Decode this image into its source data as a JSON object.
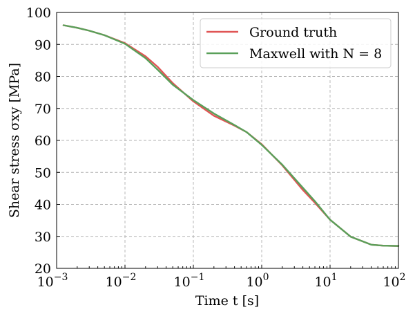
{
  "chart_data": {
    "type": "line",
    "xscale": "log",
    "xlim": [
      0.001,
      100
    ],
    "ylim": [
      20,
      100
    ],
    "grid": true,
    "legend_position": "top-right",
    "xlabel": "Time t [s]",
    "ylabel": "Shear stress σxy [MPa]",
    "x_tick_labels": [
      {
        "base": "10",
        "exp": "−3"
      },
      {
        "base": "10",
        "exp": "−2"
      },
      {
        "base": "10",
        "exp": "−1"
      },
      {
        "base": "10",
        "exp": "0"
      },
      {
        "base": "10",
        "exp": "1"
      },
      {
        "base": "10",
        "exp": "2"
      }
    ],
    "y_tick_labels": [
      "20",
      "30",
      "40",
      "50",
      "60",
      "70",
      "80",
      "90",
      "100"
    ],
    "series": [
      {
        "name": "Ground truth",
        "color": "#e05555",
        "x": [
          0.00126,
          0.002,
          0.003,
          0.005,
          0.01,
          0.02,
          0.03,
          0.05,
          0.1,
          0.2,
          0.4,
          0.6,
          1.0,
          2.0,
          4.0,
          6.0,
          10.0,
          20.0,
          40.0,
          60.0,
          100.0
        ],
        "y": [
          96.0,
          95.2,
          94.3,
          92.9,
          90.4,
          86.3,
          83.0,
          77.9,
          72.2,
          67.7,
          64.6,
          62.6,
          58.8,
          52.2,
          44.5,
          40.5,
          35.2,
          29.9,
          27.4,
          27.1,
          27.0
        ]
      },
      {
        "name": "Maxwell with N = 8",
        "color": "#5aa05a",
        "x": [
          0.00126,
          0.002,
          0.003,
          0.005,
          0.01,
          0.02,
          0.03,
          0.05,
          0.1,
          0.2,
          0.4,
          0.6,
          1.0,
          2.0,
          4.0,
          6.0,
          10.0,
          20.0,
          40.0,
          60.0,
          100.0
        ],
        "y": [
          96.0,
          95.2,
          94.3,
          92.9,
          90.2,
          85.7,
          82.1,
          77.4,
          72.6,
          68.4,
          64.8,
          62.6,
          58.6,
          52.4,
          45.2,
          41.0,
          35.2,
          29.9,
          27.4,
          27.1,
          27.0
        ]
      }
    ]
  },
  "legend": {
    "entries": [
      "Ground truth",
      "Maxwell with N = 8"
    ]
  }
}
